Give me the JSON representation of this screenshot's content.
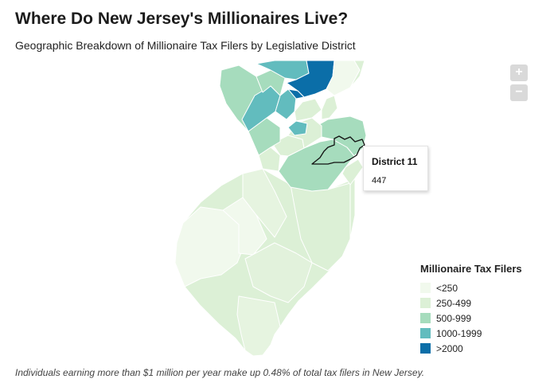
{
  "header": {
    "title": "Where Do New Jersey's Millionaires Live?",
    "subtitle": "Geographic Breakdown of Millionaire Tax Filers by Legislative District"
  },
  "zoom": {
    "in_label": "+",
    "out_label": "−"
  },
  "tooltip": {
    "title": "District 11",
    "value": "447"
  },
  "legend": {
    "title": "Millionaire Tax Filers",
    "items": [
      {
        "label": "<250",
        "color": "#f1f9ed"
      },
      {
        "label": "250-499",
        "color": "#dcf0d6"
      },
      {
        "label": "500-999",
        "color": "#a6dcbd"
      },
      {
        "label": "1000-1999",
        "color": "#62bcbe"
      },
      {
        "label": ">2000",
        "color": "#0b6ea8"
      }
    ]
  },
  "footnote": "Individuals earning more than $1 million per year make up 0.48% of total tax filers in New Jersey."
}
